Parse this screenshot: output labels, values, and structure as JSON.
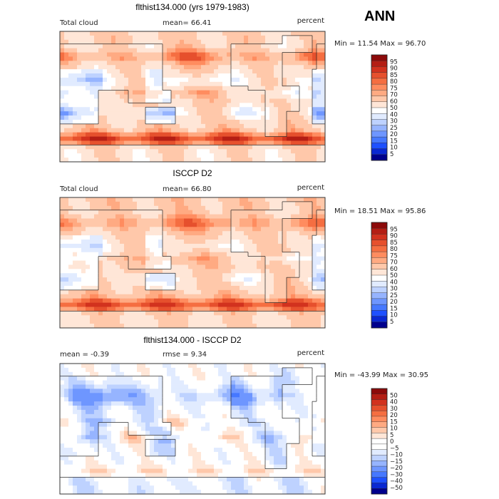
{
  "season": "ANN",
  "palettes": {
    "abs": [
      "#00008c",
      "#0a28d2",
      "#1e50ff",
      "#4678ff",
      "#6e96ff",
      "#96b4ff",
      "#bed2ff",
      "#e1ebff",
      "#ffffff",
      "#ffe6d7",
      "#ffc8aa",
      "#ffaa82",
      "#ff8c5f",
      "#f56e41",
      "#e6502d",
      "#d2321e",
      "#b41e14",
      "#8c0a0a"
    ],
    "diff": [
      "#00008c",
      "#0a28d2",
      "#1e50ff",
      "#4678ff",
      "#6e96ff",
      "#96b4ff",
      "#bed2ff",
      "#e1ebff",
      "#ffffff",
      "#ffffff",
      "#ffe6d7",
      "#ffc8aa",
      "#ffaa82",
      "#ff8c5f",
      "#f56e41",
      "#e6502d",
      "#d2321e",
      "#b41e14",
      "#8c0a0a"
    ]
  },
  "chart_data": [
    {
      "type": "heatmap",
      "title": "flthist134.000 (yrs 1979-1983)",
      "variable": "Total cloud",
      "stat_left": "mean=  66.41",
      "units": "percent",
      "minmax": "Min =  11.54 Max =  96.70",
      "colorbar": {
        "palette": "abs",
        "labels": [
          "95",
          "90",
          "85",
          "80",
          "75",
          "70",
          "60",
          "50",
          "40",
          "30",
          "25",
          "20",
          "15",
          "10",
          "5"
        ]
      },
      "field": {
        "base": 62,
        "amp": 1.0,
        "diff": false
      }
    },
    {
      "type": "heatmap",
      "title": "ISCCP D2",
      "variable": "Total cloud",
      "stat_left": "mean=  66.80",
      "units": "percent",
      "minmax": "Min =  18.51 Max =  95.86",
      "colorbar": {
        "palette": "abs",
        "labels": [
          "95",
          "90",
          "85",
          "80",
          "75",
          "70",
          "60",
          "50",
          "40",
          "30",
          "25",
          "20",
          "15",
          "10",
          "5"
        ]
      },
      "field": {
        "base": 64,
        "amp": 0.85,
        "diff": false
      }
    },
    {
      "type": "heatmap",
      "title": "flthist134.000 - ISCCP D2",
      "variable": "",
      "stat_left": "mean =  -0.39",
      "stat_mid": "rmse =   9.34",
      "units": "percent",
      "minmax": "Min = -43.99 Max =  30.95",
      "colorbar": {
        "palette": "diff",
        "labels": [
          "50",
          "40",
          "30",
          "20",
          "15",
          "10",
          "5",
          "0",
          "−5",
          "−10",
          "−15",
          "−20",
          "−30",
          "−40",
          "−50"
        ]
      },
      "field": {
        "base": 0,
        "amp": 1.0,
        "diff": true
      }
    }
  ]
}
